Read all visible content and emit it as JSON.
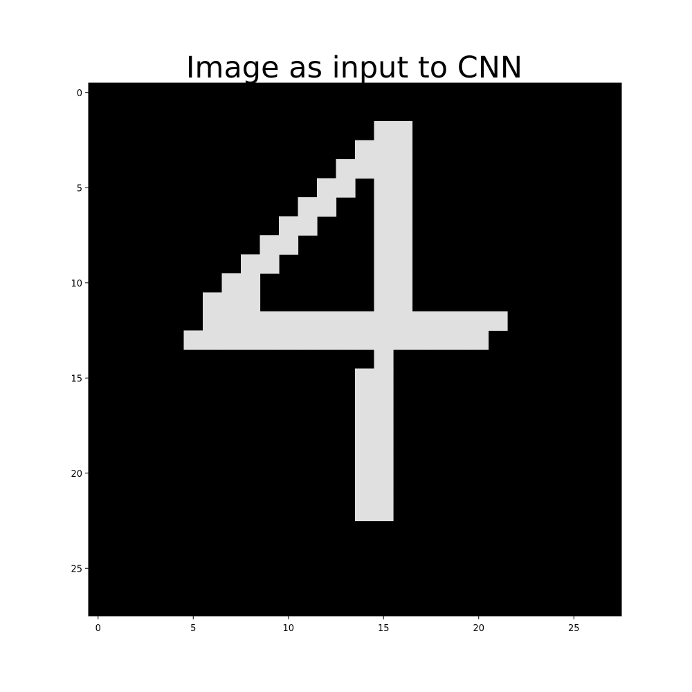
{
  "chart_data": {
    "type": "heatmap",
    "title": "Image as input to CNN",
    "xlabel": "",
    "ylabel": "",
    "colormap": "gray",
    "background_value": 0,
    "pixel_value": 0.88,
    "pixel_color": "#e0e0e0",
    "background_color": "#000000",
    "rows": 28,
    "cols": 28,
    "xlim": [
      -0.5,
      27.5
    ],
    "ylim": [
      27.5,
      -0.5
    ],
    "xticks": [
      0,
      5,
      10,
      15,
      20,
      25
    ],
    "yticks": [
      0,
      5,
      10,
      15,
      20,
      25
    ],
    "grid": false,
    "lit_pixels": [
      {
        "row": 2,
        "cols": [
          15,
          16
        ]
      },
      {
        "row": 3,
        "cols": [
          14,
          15,
          16
        ]
      },
      {
        "row": 4,
        "cols": [
          13,
          14,
          15,
          16
        ]
      },
      {
        "row": 5,
        "cols": [
          12,
          13,
          15,
          16
        ]
      },
      {
        "row": 6,
        "cols": [
          11,
          12,
          15,
          16
        ]
      },
      {
        "row": 7,
        "cols": [
          10,
          11,
          15,
          16
        ]
      },
      {
        "row": 8,
        "cols": [
          9,
          10,
          15,
          16
        ]
      },
      {
        "row": 9,
        "cols": [
          8,
          9,
          15,
          16
        ]
      },
      {
        "row": 10,
        "cols": [
          7,
          8,
          15,
          16
        ]
      },
      {
        "row": 11,
        "cols": [
          6,
          7,
          8,
          15,
          16
        ]
      },
      {
        "row": 12,
        "cols": [
          6,
          7,
          8,
          9,
          10,
          11,
          12,
          13,
          14,
          15,
          16,
          17,
          18,
          19,
          20,
          21
        ]
      },
      {
        "row": 13,
        "cols": [
          5,
          6,
          7,
          8,
          9,
          10,
          11,
          12,
          13,
          14,
          15,
          16,
          17,
          18,
          19,
          20
        ]
      },
      {
        "row": 14,
        "cols": [
          15
        ]
      },
      {
        "row": 15,
        "cols": [
          14,
          15
        ]
      },
      {
        "row": 16,
        "cols": [
          14,
          15
        ]
      },
      {
        "row": 17,
        "cols": [
          14,
          15
        ]
      },
      {
        "row": 18,
        "cols": [
          14,
          15
        ]
      },
      {
        "row": 19,
        "cols": [
          14,
          15
        ]
      },
      {
        "row": 20,
        "cols": [
          14,
          15
        ]
      },
      {
        "row": 21,
        "cols": [
          14,
          15
        ]
      },
      {
        "row": 22,
        "cols": [
          14,
          15
        ]
      }
    ]
  }
}
